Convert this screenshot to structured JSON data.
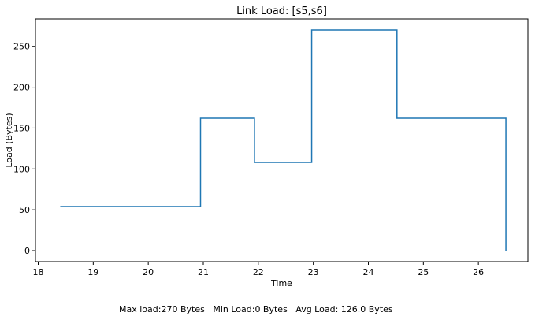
{
  "chart_data": {
    "type": "line",
    "title": "Link Load: [s5,s6]",
    "xlabel": "Time",
    "ylabel": "Load (Bytes)",
    "xlim": [
      17.95,
      26.9
    ],
    "ylim": [
      -13.5,
      283.5
    ],
    "xticks": [
      18,
      19,
      20,
      21,
      22,
      23,
      24,
      25,
      26
    ],
    "yticks": [
      0,
      50,
      100,
      150,
      200,
      250
    ],
    "grid": false,
    "step": "post",
    "series": [
      {
        "color": "#1f77b4",
        "points": [
          {
            "x": 18.4,
            "y": 54
          },
          {
            "x": 20.95,
            "y": 162
          },
          {
            "x": 21.93,
            "y": 108
          },
          {
            "x": 22.97,
            "y": 270
          },
          {
            "x": 24.52,
            "y": 162
          },
          {
            "x": 26.5,
            "y": 0
          }
        ]
      }
    ]
  },
  "footer": {
    "max_load": "Max load:270 Bytes",
    "min_load": "Min Load:0 Bytes",
    "avg_load": "Avg Load: 126.0 Bytes"
  }
}
